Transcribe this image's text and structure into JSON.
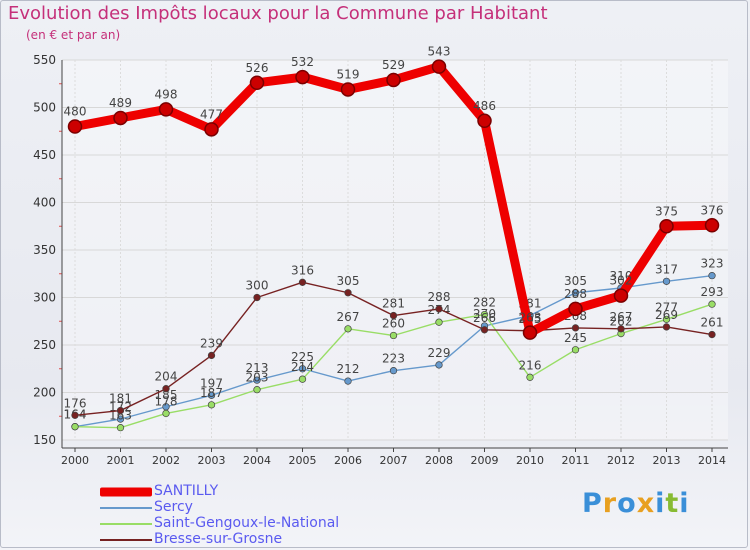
{
  "chart_data": {
    "type": "line",
    "title": "Evolution des Impôts locaux pour la Commune par Habitant",
    "subtitle": "(en € et par an)",
    "xlabel": "",
    "ylabel": "",
    "ylim": [
      150,
      550
    ],
    "yticks": [
      150,
      200,
      250,
      300,
      350,
      400,
      450,
      500,
      550
    ],
    "grid": true,
    "legend_position": "bottom-left",
    "categories": [
      "2000",
      "2001",
      "2002",
      "2003",
      "2004",
      "2005",
      "2006",
      "2007",
      "2008",
      "2009",
      "2010",
      "2011",
      "2012",
      "2013",
      "2014"
    ],
    "series": [
      {
        "name": "SANTILLY",
        "color": "#ee0000",
        "emphasis": true,
        "values": [
          480,
          489,
          498,
          477,
          526,
          532,
          519,
          529,
          543,
          486,
          263,
          288,
          302,
          375,
          376
        ],
        "labels": [
          "480",
          "489",
          "498",
          "477",
          "526",
          "532",
          "519",
          "529",
          "543",
          "486",
          "263",
          "288",
          "302",
          "375",
          "376"
        ]
      },
      {
        "name": "Sercy",
        "color": "#6699cc",
        "emphasis": false,
        "values": [
          164,
          172,
          185,
          197,
          213,
          225,
          212,
          223,
          229,
          270,
          281,
          305,
          310,
          317,
          323
        ],
        "labels": [
          "164",
          "172",
          "185",
          "197",
          "213",
          "225",
          "212",
          "223",
          "229",
          "270",
          "281",
          "305",
          "310",
          "317",
          "323"
        ]
      },
      {
        "name": "Saint-Gengoux-le-National",
        "color": "#99dd66",
        "emphasis": false,
        "values": [
          164,
          163,
          178,
          187,
          203,
          214,
          267,
          260,
          274,
          282,
          216,
          245,
          262,
          277,
          293
        ],
        "labels": [
          "164",
          "163",
          "178",
          "187",
          "203",
          "214",
          "267",
          "260",
          "274",
          "282",
          "216",
          "245",
          "262",
          "277",
          "293"
        ]
      },
      {
        "name": "Bresse-sur-Grosne",
        "color": "#772222",
        "emphasis": false,
        "values": [
          176,
          181,
          204,
          239,
          300,
          316,
          305,
          281,
          288,
          266,
          265,
          268,
          267,
          269,
          261
        ],
        "labels": [
          "176",
          "181",
          "204",
          "239",
          "300",
          "316",
          "305",
          "281",
          "288",
          "266",
          "265",
          "268",
          "267",
          "269",
          "261"
        ]
      }
    ]
  },
  "legend": {
    "items": [
      {
        "label": "SANTILLY",
        "color": "#ee0000"
      },
      {
        "label": "Sercy",
        "color": "#6699cc"
      },
      {
        "label": "Saint-Gengoux-le-National",
        "color": "#99dd66"
      },
      {
        "label": "Bresse-sur-Grosne",
        "color": "#772222"
      }
    ]
  },
  "brand": {
    "letters": [
      "P",
      "r",
      "o",
      "x",
      "i",
      "t",
      "i"
    ],
    "colors": [
      "#3a8fd8",
      "#e8a020",
      "#3a8fd8",
      "#e8a020",
      "#3a8fd8",
      "#88bb33",
      "#3a8fd8"
    ]
  }
}
